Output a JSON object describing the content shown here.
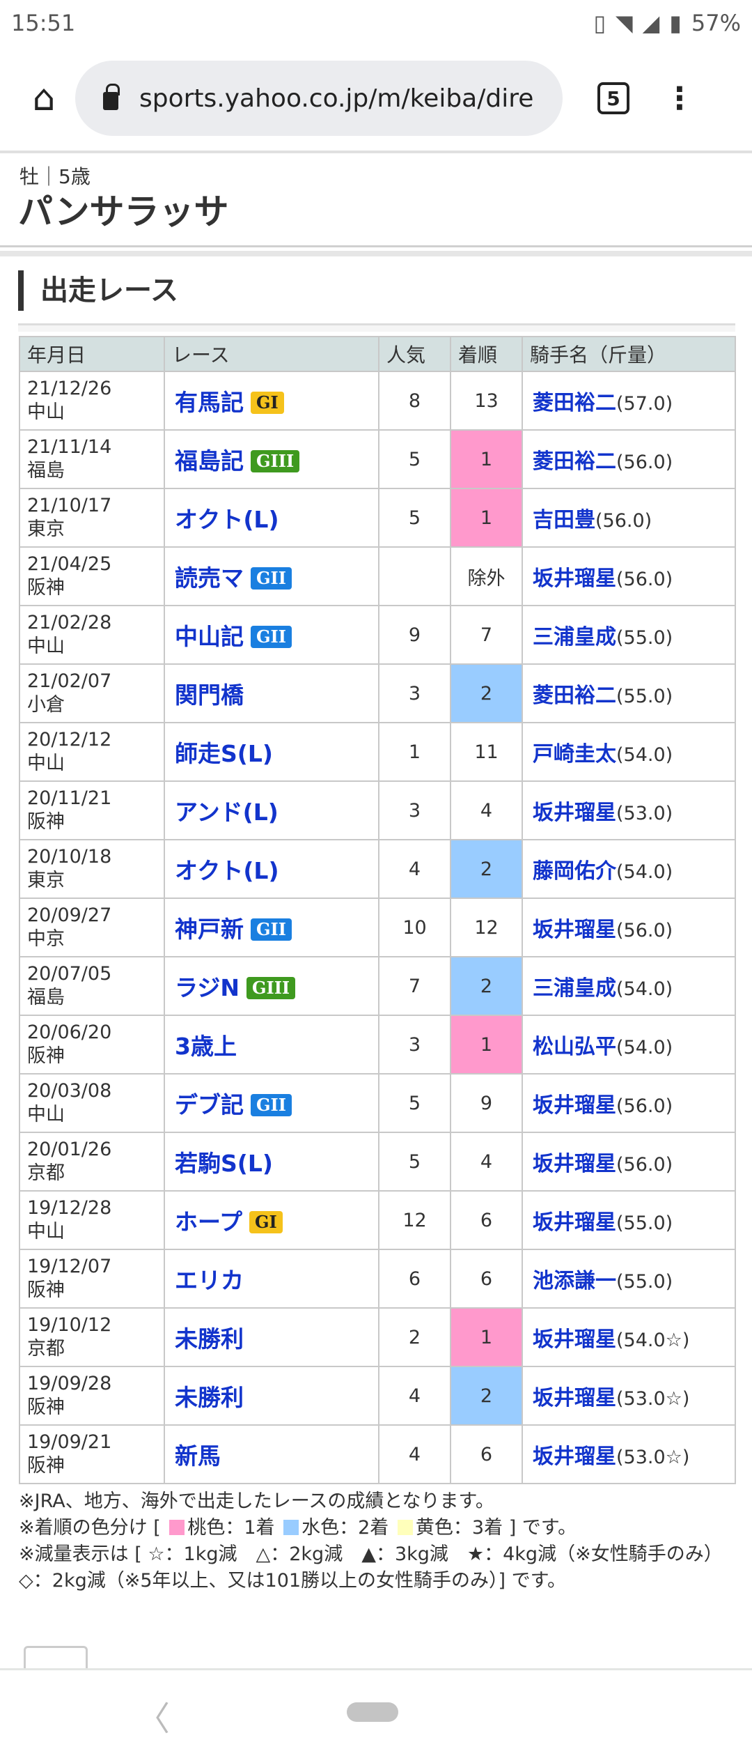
{
  "status": {
    "time": "15:51",
    "battery": "57%",
    "icons": [
      "vibrate-icon",
      "wifi-icon",
      "signal-icon",
      "battery-icon"
    ]
  },
  "browser": {
    "url": "sports.yahoo.co.jp/m/keiba/dire",
    "tab_count": "5"
  },
  "horse": {
    "sub": "牡｜5歳",
    "name": "パンサラッサ"
  },
  "section_title": "出走レース",
  "table": {
    "headers": [
      "年月日",
      "レース",
      "人気",
      "着順",
      "騎手名（斤量）"
    ],
    "rows": [
      {
        "date": "21/12/26",
        "venue": "中山",
        "race": "有馬記",
        "grade": "GI",
        "pop": "8",
        "finish": "13",
        "jockey": "菱田裕二",
        "weight": "(57.0)"
      },
      {
        "date": "21/11/14",
        "venue": "福島",
        "race": "福島記",
        "grade": "GIII",
        "pop": "5",
        "finish": "1",
        "jockey": "菱田裕二",
        "weight": "(56.0)"
      },
      {
        "date": "21/10/17",
        "venue": "東京",
        "race": "オクト(L)",
        "grade": "",
        "pop": "5",
        "finish": "1",
        "jockey": "吉田豊",
        "weight": "(56.0)"
      },
      {
        "date": "21/04/25",
        "venue": "阪神",
        "race": "読売マ",
        "grade": "GII",
        "pop": "",
        "finish": "除外",
        "jockey": "坂井瑠星",
        "weight": "(56.0)"
      },
      {
        "date": "21/02/28",
        "venue": "中山",
        "race": "中山記",
        "grade": "GII",
        "pop": "9",
        "finish": "7",
        "jockey": "三浦皇成",
        "weight": "(55.0)"
      },
      {
        "date": "21/02/07",
        "venue": "小倉",
        "race": "関門橋",
        "grade": "",
        "pop": "3",
        "finish": "2",
        "jockey": "菱田裕二",
        "weight": "(55.0)"
      },
      {
        "date": "20/12/12",
        "venue": "中山",
        "race": "師走S(L)",
        "grade": "",
        "pop": "1",
        "finish": "11",
        "jockey": "戸崎圭太",
        "weight": "(54.0)"
      },
      {
        "date": "20/11/21",
        "venue": "阪神",
        "race": "アンド(L)",
        "grade": "",
        "pop": "3",
        "finish": "4",
        "jockey": "坂井瑠星",
        "weight": "(53.0)"
      },
      {
        "date": "20/10/18",
        "venue": "東京",
        "race": "オクト(L)",
        "grade": "",
        "pop": "4",
        "finish": "2",
        "jockey": "藤岡佑介",
        "weight": "(54.0)"
      },
      {
        "date": "20/09/27",
        "venue": "中京",
        "race": "神戸新",
        "grade": "GII",
        "pop": "10",
        "finish": "12",
        "jockey": "坂井瑠星",
        "weight": "(56.0)"
      },
      {
        "date": "20/07/05",
        "venue": "福島",
        "race": "ラジN",
        "grade": "GIII",
        "pop": "7",
        "finish": "2",
        "jockey": "三浦皇成",
        "weight": "(54.0)"
      },
      {
        "date": "20/06/20",
        "venue": "阪神",
        "race": "3歳上",
        "grade": "",
        "pop": "3",
        "finish": "1",
        "jockey": "松山弘平",
        "weight": "(54.0)"
      },
      {
        "date": "20/03/08",
        "venue": "中山",
        "race": "デブ記",
        "grade": "GII",
        "pop": "5",
        "finish": "9",
        "jockey": "坂井瑠星",
        "weight": "(56.0)"
      },
      {
        "date": "20/01/26",
        "venue": "京都",
        "race": "若駒S(L)",
        "grade": "",
        "pop": "5",
        "finish": "4",
        "jockey": "坂井瑠星",
        "weight": "(56.0)"
      },
      {
        "date": "19/12/28",
        "venue": "中山",
        "race": "ホープ",
        "grade": "GI",
        "pop": "12",
        "finish": "6",
        "jockey": "坂井瑠星",
        "weight": "(55.0)"
      },
      {
        "date": "19/12/07",
        "venue": "阪神",
        "race": "エリカ",
        "grade": "",
        "pop": "6",
        "finish": "6",
        "jockey": "池添謙一",
        "weight": "(55.0)"
      },
      {
        "date": "19/10/12",
        "venue": "京都",
        "race": "未勝利",
        "grade": "",
        "pop": "2",
        "finish": "1",
        "jockey": "坂井瑠星",
        "weight": "(54.0☆)"
      },
      {
        "date": "19/09/28",
        "venue": "阪神",
        "race": "未勝利",
        "grade": "",
        "pop": "4",
        "finish": "2",
        "jockey": "坂井瑠星",
        "weight": "(53.0☆)"
      },
      {
        "date": "19/09/21",
        "venue": "阪神",
        "race": "新馬",
        "grade": "",
        "pop": "4",
        "finish": "6",
        "jockey": "坂井瑠星",
        "weight": "(53.0☆)"
      }
    ]
  },
  "colors": {
    "first": "#ff99cc",
    "second": "#99ccff",
    "third": "#ffffbb",
    "link": "#1234cc",
    "GI": "#f5c21b",
    "GII": "#1a7fe0",
    "GIII": "#3f9a1f"
  },
  "notes": {
    "line1": "※JRA、地方、海外で出走したレースの成績となります。",
    "line2_pre": "※着順の色分け [",
    "first": "桃色：1着",
    "second": "水色：2着",
    "third": "黄色：3着",
    "line2_post": "] です。",
    "line3": "※減量表示は [ ☆：1kg減　△：2kg減　▲：3kg減　★：4kg減（※女性騎手のみ）　◇：2kg減（※5年以上、又は101勝以上の女性騎手のみ）] です。"
  }
}
